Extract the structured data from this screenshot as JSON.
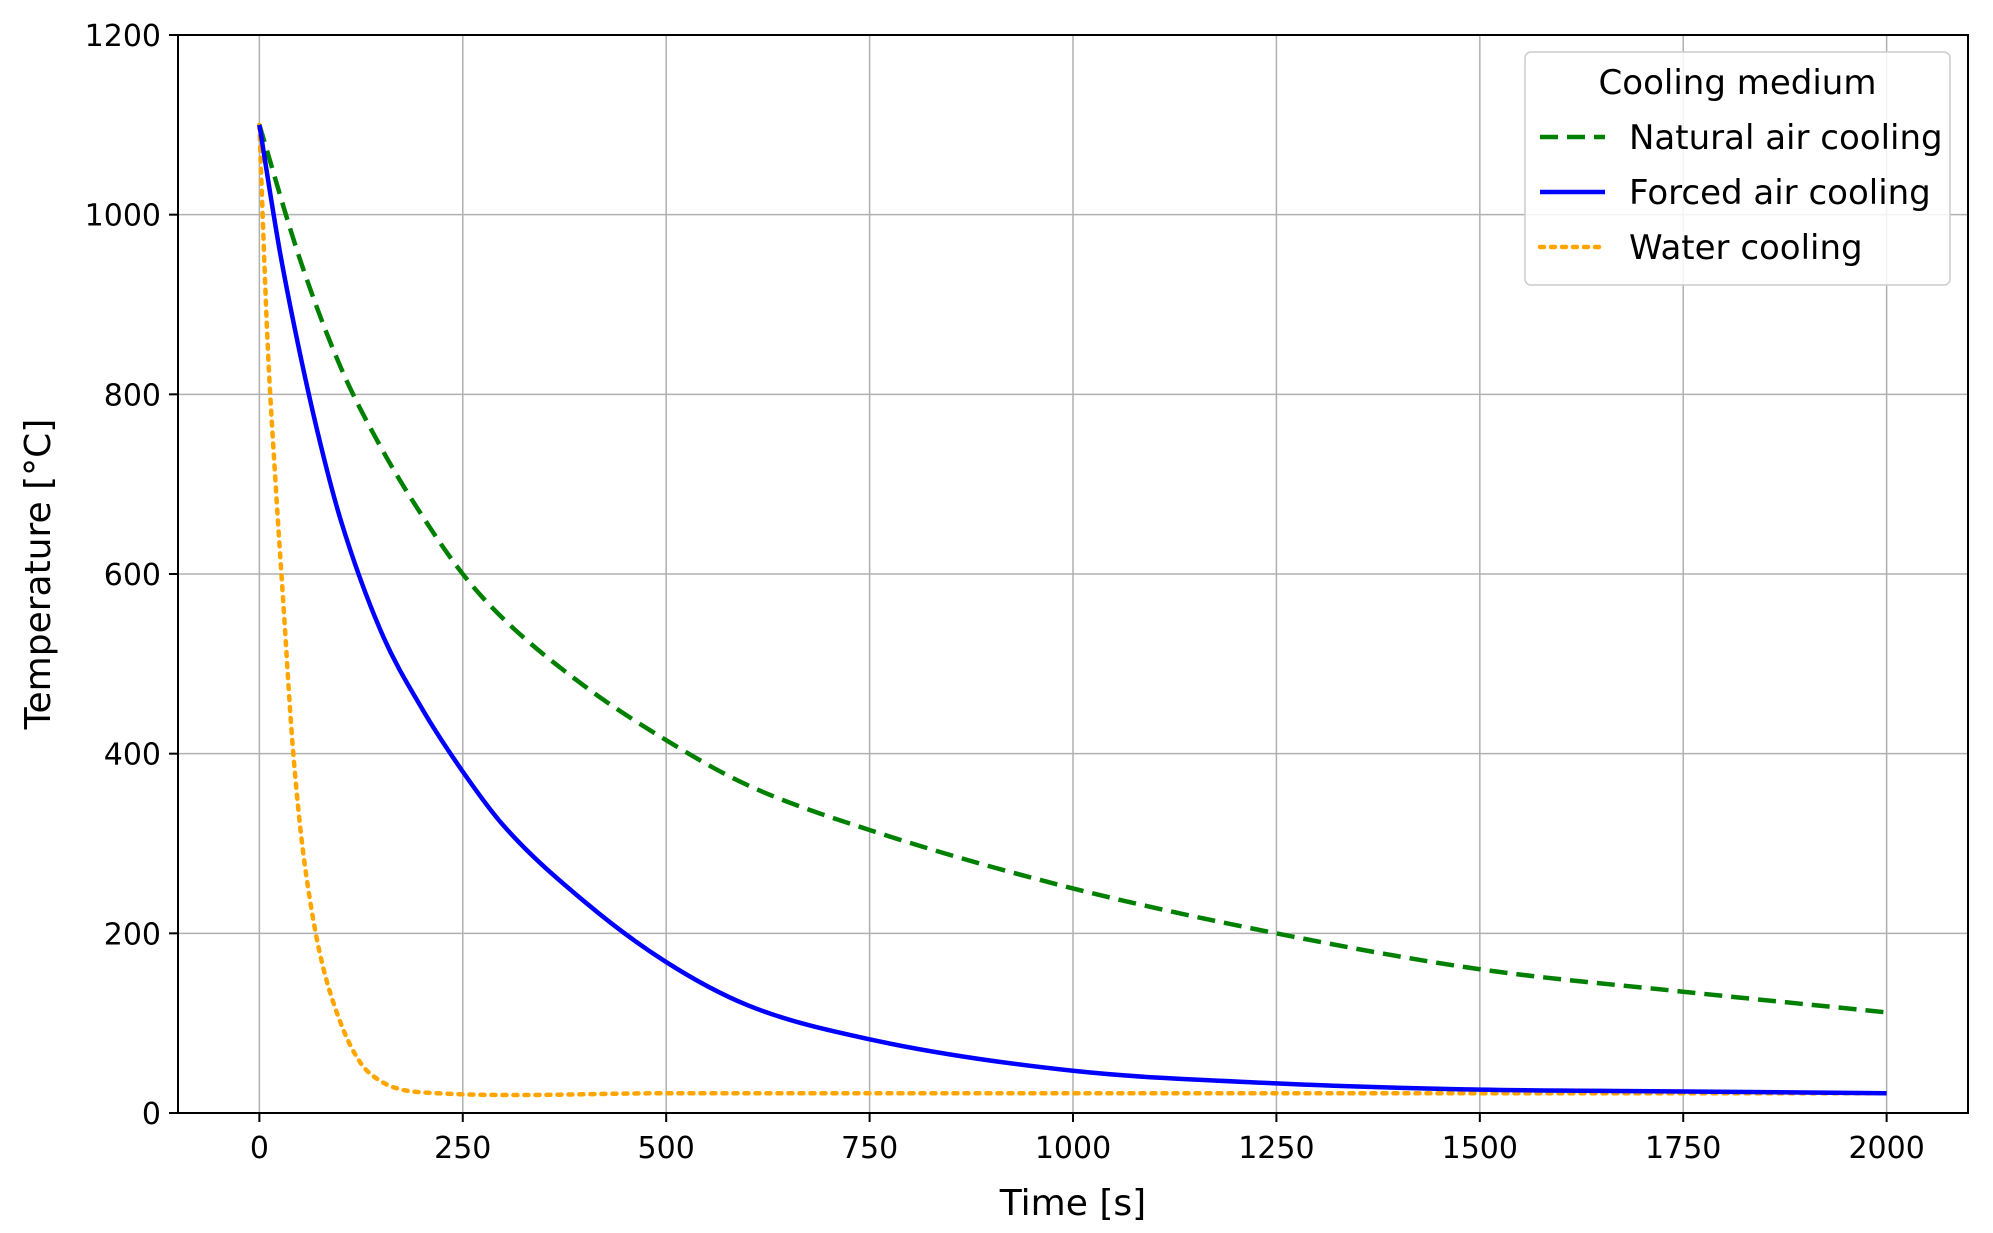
{
  "chart_data": {
    "type": "line",
    "xlabel": "Time [s]",
    "ylabel": "Temperature [°C]",
    "xlim": [
      -100,
      2100
    ],
    "ylim": [
      0,
      1200
    ],
    "x_ticks": [
      0,
      250,
      500,
      750,
      1000,
      1250,
      1500,
      1750,
      2000
    ],
    "y_ticks": [
      0,
      200,
      400,
      600,
      800,
      1000,
      1200
    ],
    "grid": true,
    "legend": {
      "title": "Cooling medium",
      "placement": "top-right"
    },
    "series": [
      {
        "name": "Natural air cooling",
        "color": "#008000",
        "style": "dashed",
        "x": [
          0,
          50,
          100,
          150,
          200,
          250,
          300,
          400,
          500,
          600,
          750,
          1000,
          1250,
          1500,
          1750,
          2000
        ],
        "y": [
          1100,
          950,
          830,
          740,
          665,
          600,
          550,
          475,
          415,
          365,
          315,
          250,
          200,
          160,
          135,
          112
        ]
      },
      {
        "name": "Forced air cooling",
        "color": "#0000ff",
        "style": "solid",
        "x": [
          0,
          25,
          50,
          75,
          100,
          150,
          200,
          250,
          300,
          400,
          500,
          600,
          750,
          1000,
          1250,
          1500,
          1750,
          2000
        ],
        "y": [
          1100,
          960,
          845,
          745,
          660,
          535,
          450,
          380,
          320,
          235,
          168,
          120,
          82,
          47,
          33,
          26,
          24,
          22
        ]
      },
      {
        "name": "Water cooling",
        "color": "#ffa500",
        "style": "dotted",
        "x": [
          0,
          10,
          20,
          30,
          40,
          50,
          60,
          75,
          100,
          125,
          150,
          175,
          200,
          500,
          1000,
          1500,
          2000
        ],
        "y": [
          1100,
          860,
          700,
          560,
          420,
          320,
          250,
          175,
          100,
          55,
          35,
          26,
          23,
          22,
          22,
          22,
          22
        ]
      }
    ]
  }
}
